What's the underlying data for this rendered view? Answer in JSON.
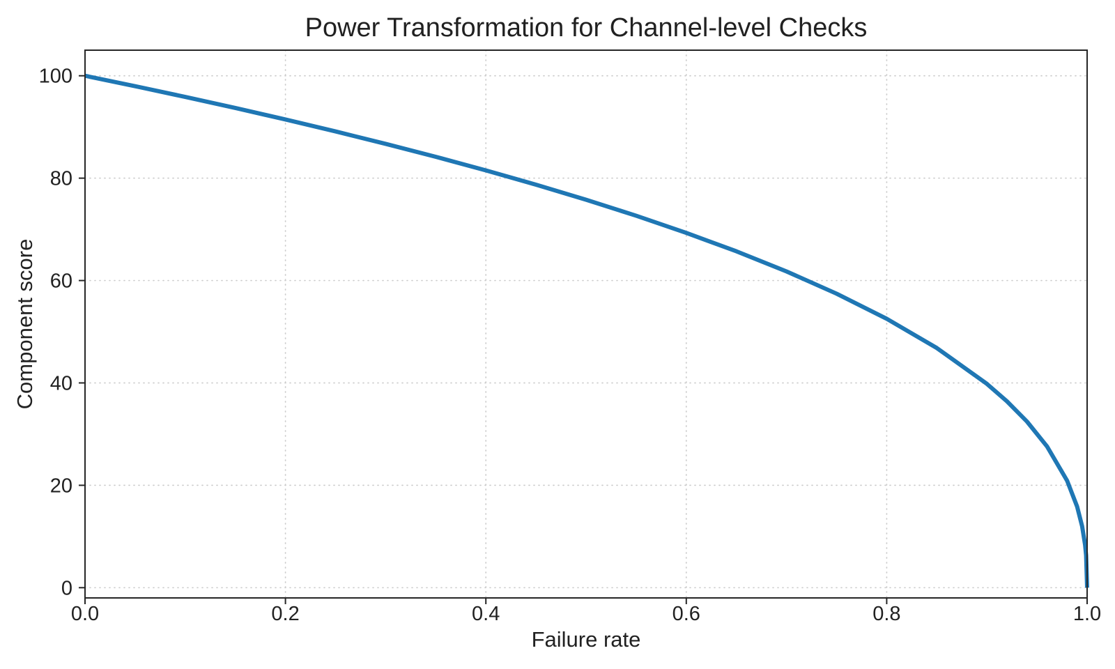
{
  "page": {
    "background": "#ffffff"
  },
  "chart_data": {
    "type": "line",
    "title": "Power Transformation for Channel-level Checks",
    "xlabel": "Failure rate",
    "ylabel": "Component score",
    "xlim": [
      0.0,
      1.0
    ],
    "ylim": [
      -2,
      105
    ],
    "x_ticks": [
      0.0,
      0.2,
      0.4,
      0.6,
      0.8,
      1.0
    ],
    "x_tick_labels": [
      "0.0",
      "0.2",
      "0.4",
      "0.6",
      "0.8",
      "1.0"
    ],
    "y_ticks": [
      0,
      20,
      40,
      60,
      80,
      100
    ],
    "y_tick_labels": [
      "0",
      "20",
      "40",
      "60",
      "80",
      "100"
    ],
    "grid": "dotted",
    "legend": "none",
    "colors": {
      "line": "#1f77b4",
      "grid": "#cccccc",
      "frame": "#262626",
      "text": "#212121"
    },
    "series": [
      {
        "name": "component-score-curve",
        "x": [
          0,
          0.05,
          0.1,
          0.15,
          0.2,
          0.25,
          0.3,
          0.35,
          0.4,
          0.45,
          0.5,
          0.55,
          0.6,
          0.65,
          0.7,
          0.75,
          0.8,
          0.85,
          0.9,
          0.92,
          0.94,
          0.96,
          0.98,
          0.99,
          0.995,
          0.998,
          0.999,
          1.0
        ],
        "y": [
          100,
          97.97,
          95.87,
          93.71,
          91.46,
          89.13,
          86.7,
          84.17,
          81.52,
          78.73,
          75.79,
          72.66,
          69.31,
          65.71,
          61.78,
          57.43,
          52.53,
          46.82,
          39.81,
          36.41,
          32.45,
          27.59,
          20.91,
          15.85,
          12.01,
          8.33,
          6.31,
          0
        ]
      }
    ]
  }
}
